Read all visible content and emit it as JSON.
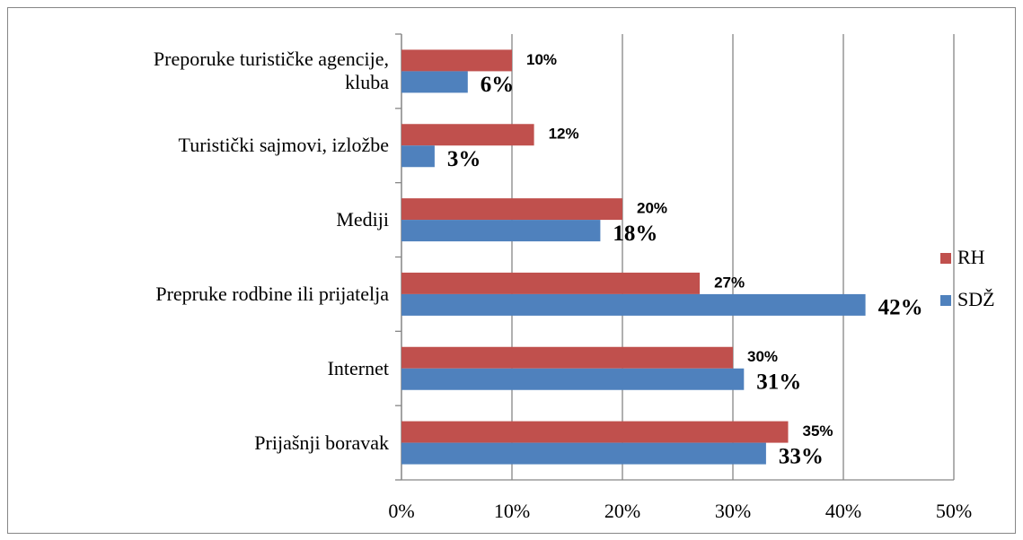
{
  "chart_data": {
    "type": "bar",
    "orientation": "horizontal",
    "categories": [
      "Preporuke turističke agencije,\nkluba",
      "Turistički sajmovi, izložbe",
      "Mediji",
      "Prepruke rodbine ili prijatelja",
      "Internet",
      "Prijašnji boravak"
    ],
    "series": [
      {
        "name": "RH",
        "color": "#c0504d",
        "values": [
          10,
          12,
          20,
          27,
          30,
          35
        ],
        "value_labels": [
          "10%",
          "12%",
          "20%",
          "27%",
          "30%",
          "35%"
        ]
      },
      {
        "name": "SDŽ",
        "color": "#4f81bd",
        "values": [
          6,
          3,
          18,
          42,
          31,
          33
        ],
        "value_labels": [
          "6%",
          "3%",
          "18%",
          "42%",
          "31%",
          "33%"
        ]
      }
    ],
    "xlim": [
      0,
      50
    ],
    "xticks": [
      {
        "value": 0,
        "label": "0%"
      },
      {
        "value": 10,
        "label": "10%"
      },
      {
        "value": 20,
        "label": "20%"
      },
      {
        "value": 30,
        "label": "30%"
      },
      {
        "value": 40,
        "label": "40%"
      },
      {
        "value": 50,
        "label": "50%"
      }
    ],
    "grid": true,
    "legend": "right"
  }
}
